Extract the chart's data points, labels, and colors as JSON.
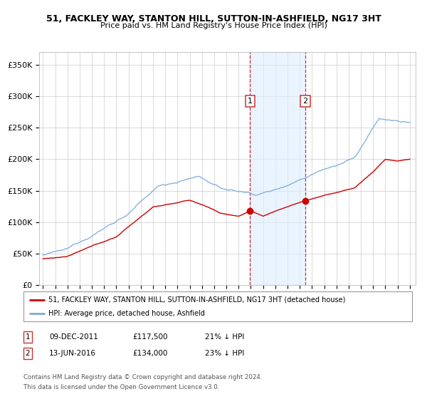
{
  "title": "51, FACKLEY WAY, STANTON HILL, SUTTON-IN-ASHFIELD, NG17 3HT",
  "subtitle": "Price paid vs. HM Land Registry's House Price Index (HPI)",
  "legend_line1": "51, FACKLEY WAY, STANTON HILL, SUTTON-IN-ASHFIELD, NG17 3HT (detached house)",
  "legend_line2": "HPI: Average price, detached house, Ashfield",
  "annotation1_label": "1",
  "annotation1_date": "09-DEC-2011",
  "annotation1_price": "£117,500",
  "annotation1_hpi": "21% ↓ HPI",
  "annotation2_label": "2",
  "annotation2_date": "13-JUN-2016",
  "annotation2_price": "£134,000",
  "annotation2_hpi": "23% ↓ HPI",
  "footer1": "Contains HM Land Registry data © Crown copyright and database right 2024.",
  "footer2": "This data is licensed under the Open Government Licence v3.0.",
  "red_color": "#cc0000",
  "blue_color": "#7aaadd",
  "blue_fill_color": "#ddeeff",
  "marker1_x": 2011.94,
  "marker1_y": 117500,
  "marker2_x": 2016.45,
  "marker2_y": 134000,
  "vline1_x": 2011.94,
  "vline2_x": 2016.45,
  "ylim": [
    0,
    370000
  ],
  "xlim_start": 1994.7,
  "xlim_end": 2025.5,
  "yticks": [
    0,
    50000,
    100000,
    150000,
    200000,
    250000,
    300000,
    350000
  ],
  "ytick_labels": [
    "£0",
    "£50K",
    "£100K",
    "£150K",
    "£200K",
    "£250K",
    "£300K",
    "£350K"
  ],
  "xtick_years": [
    1995,
    1996,
    1997,
    1998,
    1999,
    2000,
    2001,
    2002,
    2003,
    2004,
    2005,
    2006,
    2007,
    2008,
    2009,
    2010,
    2011,
    2012,
    2013,
    2014,
    2015,
    2016,
    2017,
    2018,
    2019,
    2020,
    2021,
    2022,
    2023,
    2024,
    2025
  ]
}
